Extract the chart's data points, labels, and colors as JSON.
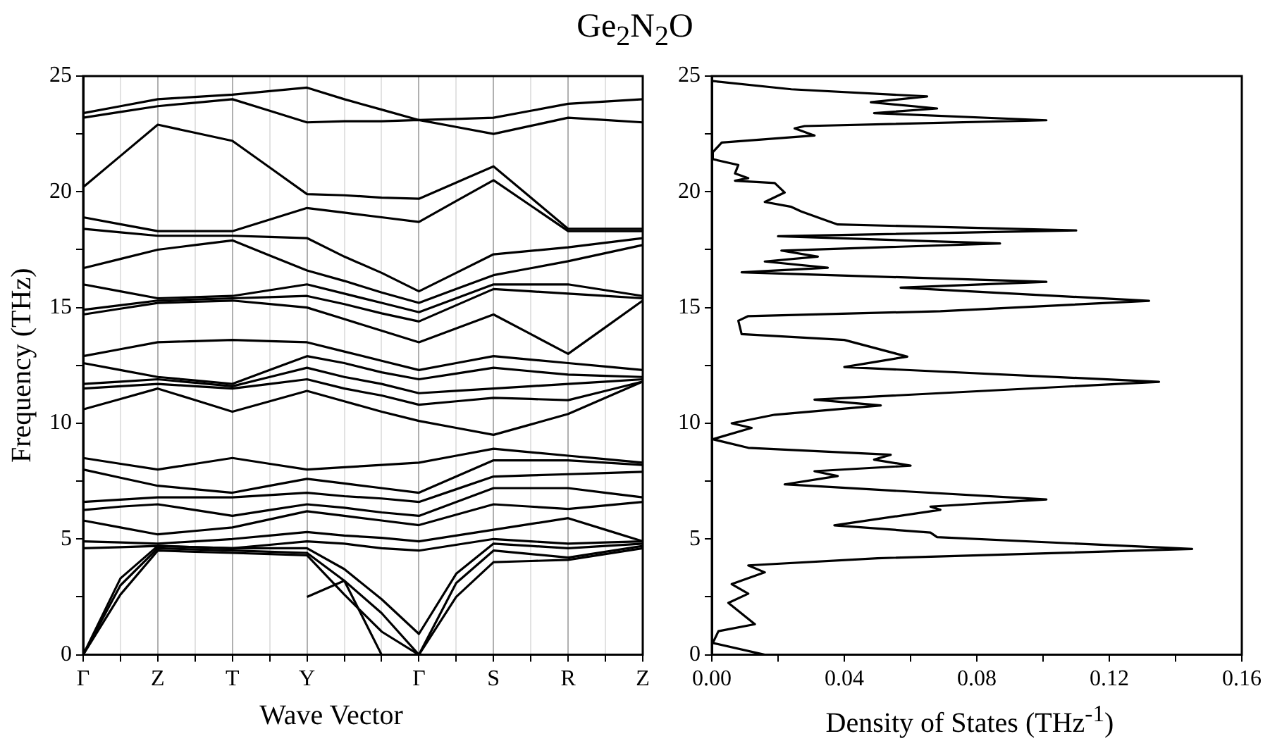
{
  "chart_data": [
    {
      "type": "line",
      "title": "Ge$_{2}$N$_{2}$O",
      "xlabel": "Wave Vector",
      "ylabel": "Frequency (THz)",
      "categories": [
        "Γ",
        null,
        "Z",
        null,
        "T",
        null,
        "Y",
        null,
        null,
        "Γ",
        null,
        "S",
        null,
        "R",
        null,
        "Z"
      ],
      "ylim": [
        0,
        25
      ],
      "yticks": [
        0,
        {
          "value": 2.5,
          "label": null
        },
        5,
        {
          "value": 7.5,
          "label": null
        },
        10,
        {
          "value": 12.5,
          "label": null
        },
        15,
        {
          "value": 17.5,
          "label": null
        },
        20,
        {
          "value": 22.5,
          "label": null
        },
        25
      ],
      "grid": "x",
      "legend": false,
      "series": [
        {
          "color": "#000000",
          "values": [
            0,
            2.6,
            4.5,
            4.45,
            4.4,
            4.35,
            4.3,
            2.6,
            1.0,
            0,
            2.5,
            4.0,
            4.05,
            4.1,
            4.35,
            4.6
          ]
        },
        {
          "color": "#000000",
          "values": [
            0,
            3.0,
            4.6,
            4.55,
            4.5,
            4.45,
            4.4,
            3.2,
            1.8,
            0,
            3.1,
            4.5,
            4.35,
            4.2,
            4.45,
            4.7
          ]
        },
        {
          "color": "#000000",
          "values": [
            0,
            3.3,
            4.7,
            4.65,
            4.6,
            4.6,
            4.6,
            3.7,
            2.4,
            0.9,
            3.5,
            4.8,
            4.7,
            4.6,
            4.7,
            4.8
          ]
        },
        {
          "color": "#000000",
          "values": [
            null,
            null,
            null,
            null,
            null,
            null,
            2.5,
            3.2,
            0,
            null,
            null,
            null,
            null,
            null,
            null,
            null
          ]
        },
        {
          "color": "#000000",
          "values": [
            4.6,
            4.65,
            4.7,
            4.65,
            4.6,
            4.75,
            4.9,
            4.8,
            4.6,
            4.5,
            4.75,
            5.0,
            4.9,
            4.8,
            4.85,
            4.9
          ]
        },
        {
          "color": "#000000",
          "values": [
            4.9,
            4.85,
            4.8,
            4.9,
            5.0,
            5.15,
            5.3,
            5.15,
            5.05,
            4.9,
            5.15,
            5.4,
            5.65,
            5.9,
            5.4,
            4.9
          ]
        },
        {
          "color": "#000000",
          "values": [
            5.8,
            5.5,
            5.2,
            5.35,
            5.5,
            5.85,
            6.2,
            6.0,
            5.8,
            5.6,
            6.05,
            6.5,
            6.4,
            6.3,
            6.45,
            6.6
          ]
        },
        {
          "color": "#000000",
          "values": [
            6.25,
            6.4,
            6.5,
            6.25,
            6.0,
            6.25,
            6.5,
            6.35,
            6.15,
            6.0,
            6.6,
            7.2,
            7.2,
            7.2,
            7.0,
            6.8
          ]
        },
        {
          "color": "#000000",
          "values": [
            6.6,
            6.7,
            6.8,
            6.8,
            6.8,
            6.9,
            7.0,
            6.85,
            6.75,
            6.6,
            7.15,
            7.7,
            7.75,
            7.8,
            7.85,
            7.9
          ]
        },
        {
          "color": "#000000",
          "values": [
            8.0,
            7.65,
            7.3,
            7.15,
            7.0,
            7.3,
            7.6,
            7.4,
            7.2,
            7.0,
            7.7,
            8.4,
            8.4,
            8.4,
            8.3,
            8.2
          ]
        },
        {
          "color": "#000000",
          "values": [
            8.5,
            8.25,
            8.0,
            8.25,
            8.5,
            8.25,
            8.0,
            8.1,
            8.2,
            8.3,
            8.6,
            8.9,
            8.75,
            8.6,
            8.45,
            8.3
          ]
        },
        {
          "color": "#000000",
          "values": [
            10.6,
            11.05,
            11.5,
            11.0,
            10.5,
            10.95,
            11.4,
            10.95,
            10.5,
            10.1,
            9.8,
            9.5,
            9.95,
            10.4,
            11.1,
            11.8
          ]
        },
        {
          "color": "#000000",
          "values": [
            11.5,
            11.6,
            11.7,
            11.6,
            11.5,
            11.7,
            11.9,
            11.5,
            11.2,
            10.8,
            10.95,
            11.1,
            11.05,
            11.0,
            11.4,
            11.8
          ]
        },
        {
          "color": "#000000",
          "values": [
            11.7,
            11.8,
            11.9,
            11.75,
            11.6,
            12.0,
            12.4,
            12.0,
            11.7,
            11.3,
            11.4,
            11.5,
            11.6,
            11.7,
            11.8,
            11.9
          ]
        },
        {
          "color": "#000000",
          "values": [
            12.6,
            12.3,
            12.0,
            11.85,
            11.7,
            12.3,
            12.9,
            12.6,
            12.2,
            11.9,
            12.15,
            12.4,
            12.25,
            12.1,
            12.05,
            12.0
          ]
        },
        {
          "color": "#000000",
          "values": [
            12.9,
            13.2,
            13.5,
            13.55,
            13.6,
            13.55,
            13.5,
            13.1,
            12.7,
            12.3,
            12.6,
            12.9,
            12.75,
            12.6,
            12.45,
            12.3
          ]
        },
        {
          "color": "#000000",
          "values": [
            14.7,
            14.95,
            15.2,
            15.25,
            15.3,
            15.15,
            15.0,
            14.5,
            14.0,
            13.5,
            14.1,
            14.7,
            13.85,
            13.0,
            14.15,
            15.3
          ]
        },
        {
          "color": "#000000",
          "values": [
            14.9,
            15.1,
            15.3,
            15.35,
            15.4,
            15.45,
            15.5,
            15.15,
            14.75,
            14.4,
            15.1,
            15.8,
            15.7,
            15.6,
            15.5,
            15.4
          ]
        },
        {
          "color": "#000000",
          "values": [
            16.0,
            15.7,
            15.4,
            15.45,
            15.5,
            15.75,
            16.0,
            15.6,
            15.2,
            14.8,
            15.4,
            16.0,
            16.0,
            16.0,
            15.75,
            15.5
          ]
        },
        {
          "color": "#000000",
          "values": [
            16.7,
            17.1,
            17.5,
            17.7,
            17.9,
            17.25,
            16.6,
            16.15,
            15.65,
            15.2,
            15.8,
            16.4,
            16.7,
            17.0,
            17.35,
            17.7
          ]
        },
        {
          "color": "#000000",
          "values": [
            18.4,
            18.25,
            18.1,
            18.1,
            18.1,
            18.05,
            18.0,
            17.2,
            16.5,
            15.7,
            16.5,
            17.3,
            17.45,
            17.6,
            17.8,
            18.0
          ]
        },
        {
          "color": "#000000",
          "values": [
            18.9,
            18.6,
            18.3,
            18.3,
            18.3,
            18.8,
            19.3,
            19.1,
            18.9,
            18.7,
            19.6,
            20.5,
            19.4,
            18.3,
            18.3,
            18.3
          ]
        },
        {
          "color": "#000000",
          "values": [
            20.2,
            21.55,
            22.9,
            22.55,
            22.2,
            21.05,
            19.9,
            19.85,
            19.75,
            19.7,
            20.4,
            21.1,
            19.75,
            18.4,
            18.4,
            18.4
          ]
        },
        {
          "color": "#000000",
          "values": [
            23.2,
            23.45,
            23.7,
            23.85,
            24.0,
            23.5,
            23.0,
            23.05,
            23.05,
            23.1,
            22.8,
            22.5,
            22.85,
            23.2,
            23.1,
            23.0
          ]
        },
        {
          "color": "#000000",
          "values": [
            23.4,
            23.7,
            24.0,
            24.1,
            24.2,
            24.35,
            24.5,
            24.0,
            23.55,
            23.1,
            23.15,
            23.2,
            23.5,
            23.8,
            23.9,
            24.0
          ]
        }
      ]
    },
    {
      "type": "line",
      "xlabel": "Density of States (THz$^{-1}$)",
      "xlim": [
        0,
        0.16
      ],
      "xticks": [
        {
          "value": 0,
          "label": "0.00"
        },
        {
          "value": 0.02,
          "label": null
        },
        0.04,
        {
          "value": 0.06,
          "label": null
        },
        0.08,
        {
          "value": 0.1,
          "label": null
        },
        0.12,
        {
          "value": 0.14,
          "label": null
        },
        0.16
      ],
      "ylim": [
        0,
        25
      ],
      "yticks": [
        0,
        {
          "value": 2.5,
          "label": null
        },
        5,
        {
          "value": 7.5,
          "label": null
        },
        10,
        {
          "value": 12.5,
          "label": null
        },
        15,
        {
          "value": 17.5,
          "label": null
        },
        20,
        {
          "value": 22.5,
          "label": null
        },
        25
      ],
      "grid": false,
      "legend": false,
      "series": [
        {
          "color": "#000000",
          "x": [
            0,
            0.024,
            0.065,
            0.048,
            0.068,
            0.049,
            0.101,
            0.028,
            0.025,
            0.031,
            0.003,
            0.0003,
            0.0003,
            0.008,
            0.007,
            0.011,
            0.007,
            0.019,
            0.022,
            0.016,
            0.024,
            0.027,
            0.035,
            0.038,
            0.11,
            0.02,
            0.087,
            0.021,
            0.032,
            0.016,
            0.035,
            0.009,
            0.101,
            0.057,
            0.132,
            0.069,
            0.011,
            0.008,
            0.009,
            0.04,
            0.059,
            0.04,
            0.135,
            0.031,
            0.051,
            0.019,
            0.006,
            0.012,
            0.0003,
            0.011,
            0.054,
            0.049,
            0.06,
            0.031,
            0.038,
            0.022,
            0.101,
            0.066,
            0.069,
            0.037,
            0.066,
            0.068,
            0.145,
            0.05,
            0.011,
            0.016,
            0.006,
            0.011,
            0.005,
            0.013,
            0.002,
            0.0003,
            0.016
          ],
          "values": [
            24.79,
            24.43,
            24.12,
            23.87,
            23.6,
            23.4,
            23.09,
            22.84,
            22.74,
            22.43,
            22.13,
            21.71,
            21.41,
            21.16,
            20.79,
            20.59,
            20.48,
            20.38,
            19.97,
            19.56,
            19.35,
            19.15,
            18.74,
            18.59,
            18.33,
            18.08,
            17.77,
            17.46,
            17.2,
            16.99,
            16.72,
            16.52,
            16.11,
            15.86,
            15.29,
            14.84,
            14.63,
            14.43,
            13.85,
            13.6,
            12.88,
            12.43,
            11.79,
            11.02,
            10.77,
            10.37,
            10.0,
            9.8,
            9.31,
            8.94,
            8.64,
            8.43,
            8.17,
            7.93,
            7.72,
            7.36,
            6.71,
            6.4,
            6.26,
            5.59,
            5.28,
            5.08,
            4.57,
            4.17,
            3.86,
            3.56,
            3.05,
            2.64,
            2.24,
            1.32,
            1.02,
            0.51,
            0
          ]
        }
      ]
    }
  ]
}
